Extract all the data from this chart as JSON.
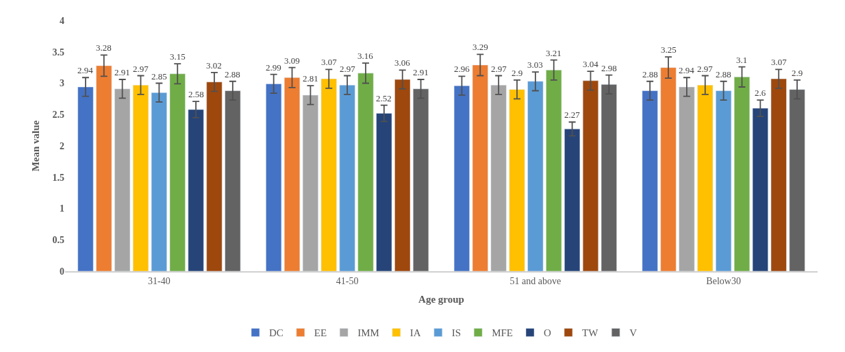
{
  "chart_data": {
    "type": "bar",
    "xlabel": "Age group",
    "ylabel": "Mean value",
    "categories": [
      "31-40",
      "41-50",
      "51 and above",
      "Below30"
    ],
    "series": [
      {
        "name": "DC",
        "color": "#4472c4",
        "values": [
          2.94,
          2.99,
          2.96,
          2.88
        ],
        "errors": [
          0.15,
          0.15,
          0.15,
          0.15
        ]
      },
      {
        "name": "EE",
        "color": "#ed7d31",
        "values": [
          3.28,
          3.09,
          3.29,
          3.25
        ],
        "errors": [
          0.17,
          0.16,
          0.17,
          0.17
        ]
      },
      {
        "name": "IMM",
        "color": "#a5a5a5",
        "values": [
          2.91,
          2.81,
          2.97,
          2.94
        ],
        "errors": [
          0.15,
          0.15,
          0.15,
          0.15
        ]
      },
      {
        "name": "IA",
        "color": "#ffc000",
        "values": [
          2.97,
          3.07,
          2.9,
          2.97
        ],
        "errors": [
          0.15,
          0.15,
          0.15,
          0.15
        ]
      },
      {
        "name": "IS",
        "color": "#5b9bd5",
        "values": [
          2.85,
          2.97,
          3.03,
          2.88
        ],
        "errors": [
          0.15,
          0.15,
          0.15,
          0.15
        ]
      },
      {
        "name": "MFE",
        "color": "#70ad47",
        "values": [
          3.15,
          3.16,
          3.21,
          3.1
        ],
        "errors": [
          0.16,
          0.16,
          0.16,
          0.16
        ]
      },
      {
        "name": "O",
        "color": "#264478",
        "values": [
          2.58,
          2.52,
          2.27,
          2.6
        ],
        "errors": [
          0.13,
          0.13,
          0.11,
          0.13
        ]
      },
      {
        "name": "TW",
        "color": "#9e480e",
        "values": [
          3.02,
          3.06,
          3.04,
          3.07
        ],
        "errors": [
          0.15,
          0.15,
          0.15,
          0.15
        ]
      },
      {
        "name": "V",
        "color": "#636363",
        "values": [
          2.88,
          2.91,
          2.98,
          2.9
        ],
        "errors": [
          0.15,
          0.15,
          0.15,
          0.15
        ]
      }
    ],
    "ylim": [
      0,
      4
    ],
    "yticks": [
      0,
      0.5,
      1,
      1.5,
      2,
      2.5,
      3,
      3.5,
      4
    ],
    "legend": "bottom",
    "data_labels": true
  }
}
